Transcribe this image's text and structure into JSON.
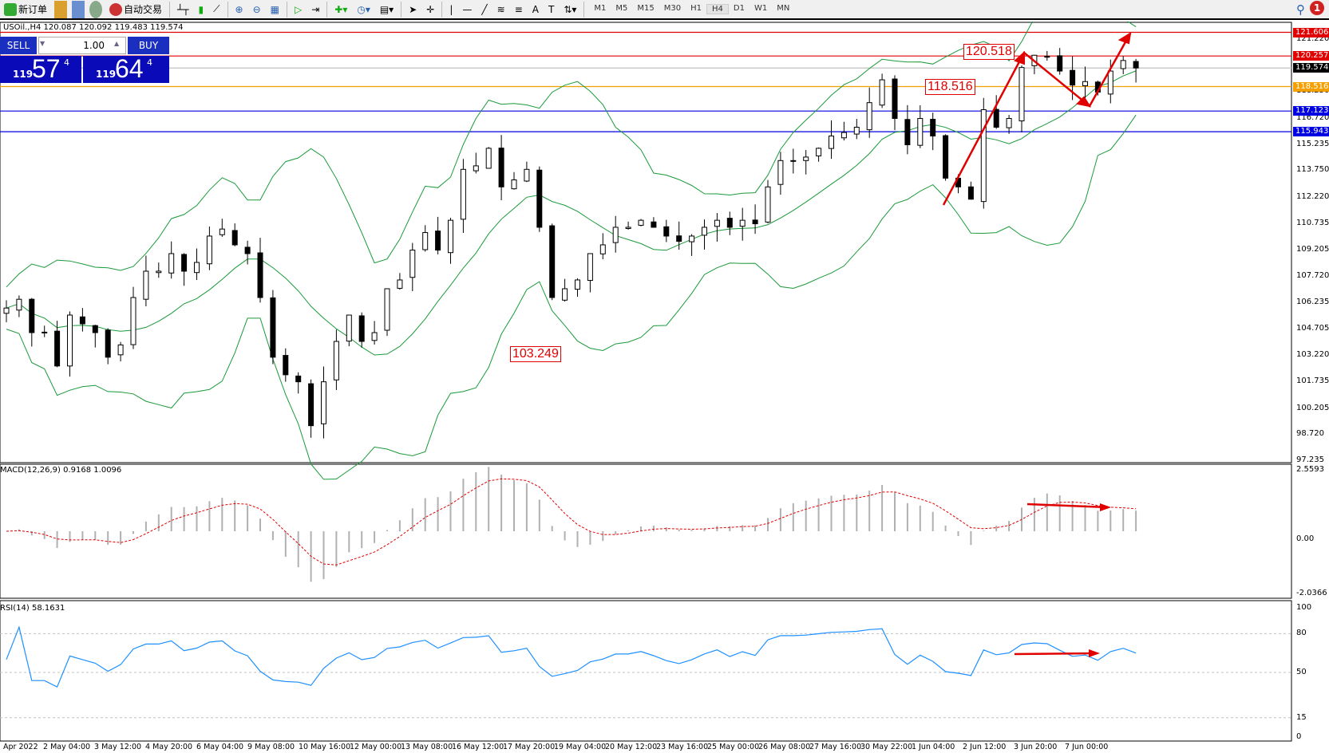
{
  "toolbar": {
    "new_order": "新订单",
    "auto_trading": "自动交易",
    "timeframes": [
      "M1",
      "M5",
      "M15",
      "M30",
      "H1",
      "H4",
      "D1",
      "W1",
      "MN"
    ],
    "active_timeframe": "H4",
    "notification_count": "1",
    "icons": [
      "history-center-icon",
      "market-watch-icon",
      "signals-icon",
      "bar-chart-icon",
      "candle-chart-icon",
      "line-chart-icon",
      "zoom-in-icon",
      "zoom-out-icon",
      "tile-windows-icon",
      "auto-scroll-icon",
      "chart-shift-icon",
      "indicators-icon",
      "periods-icon",
      "templates-icon",
      "cursor-icon",
      "crosshair-icon",
      "vertical-line-icon",
      "horizontal-line-icon",
      "trendline-icon",
      "fibonacci-icon",
      "fibo-fan-icon",
      "text-icon",
      "text-label-icon",
      "arrows-icon"
    ]
  },
  "header": {
    "symbol_line": "USOil.,H4  120.087 120.092 119.483 119.574"
  },
  "trade_panel": {
    "sell": "SELL",
    "buy": "BUY",
    "volume": "1.00",
    "sell_small": "119",
    "sell_big": "57",
    "sell_pip": "4",
    "buy_small": "119",
    "buy_big": "64",
    "buy_pip": "4"
  },
  "annotations": {
    "high1": "120.518",
    "level": "118.516",
    "low": "103.249"
  },
  "price_tags": [
    {
      "v": "121.606",
      "c": "#e00000"
    },
    {
      "v": "120.257",
      "c": "#e00000"
    },
    {
      "v": "119.574",
      "c": "#000000"
    },
    {
      "v": "118.516",
      "c": "#f5a000"
    },
    {
      "v": "117.123",
      "c": "#0000e0"
    },
    {
      "v": "115.943",
      "c": "#0000e0"
    }
  ],
  "price_axis": [
    "121.220",
    "118.250",
    "116.720",
    "115.235",
    "113.750",
    "112.220",
    "110.735",
    "109.205",
    "107.720",
    "106.235",
    "104.705",
    "103.220",
    "101.735",
    "100.205",
    "98.720",
    "97.235"
  ],
  "macd": {
    "label": "MACD(12,26,9) 0.9168 1.0096",
    "max": "2.5593",
    "zero": "0.00",
    "min": "-2.0366"
  },
  "rsi": {
    "label": "RSI(14) 58.1631",
    "levels": [
      "100",
      "80",
      "50",
      "15",
      "0"
    ]
  },
  "time_axis": [
    "Apr 2022",
    "2 May 04:00",
    "3 May 12:00",
    "4 May 20:00",
    "6 May 04:00",
    "9 May 08:00",
    "10 May 16:00",
    "12 May 00:00",
    "13 May 08:00",
    "16 May 12:00",
    "17 May 20:00",
    "19 May 04:00",
    "20 May 12:00",
    "23 May 16:00",
    "25 May 00:00",
    "26 May 08:00",
    "27 May 16:00",
    "30 May 22:00",
    "1 Jun 04:00",
    "2 Jun 12:00",
    "3 Jun 20:00",
    "7 Jun 00:00"
  ],
  "chart_data": {
    "type": "candlestick",
    "symbol": "USOil.",
    "timeframe": "H4",
    "ylim": [
      97.235,
      121.606
    ],
    "closes": [
      105.9,
      106.4,
      104.5,
      104.5,
      102.6,
      105.5,
      105.0,
      104.5,
      103.1,
      103.8,
      106.5,
      108,
      108,
      109,
      108,
      108.5,
      110,
      110.4,
      109.5,
      109,
      106.5,
      103.1,
      102.1,
      101.7,
      99.2,
      101.7,
      104,
      105.5,
      104,
      104.5,
      107,
      107.5,
      109.2,
      110.2,
      109.2,
      110.9,
      113.8,
      114,
      115,
      112.8,
      113.2,
      113.8,
      110.5,
      106.5,
      107,
      107.5,
      109,
      109.5,
      110.5,
      110.5,
      110.9,
      110.5,
      110,
      109.7,
      110,
      110.5,
      110.9,
      110.5,
      110.9,
      110.7,
      112.8,
      114.3,
      114.3,
      114.5,
      115,
      115.7,
      115.9,
      116.2,
      117.6,
      118.9,
      116.7,
      115.2,
      116.7,
      115.7,
      113.3,
      112.8,
      112.1,
      117.2,
      116.2,
      116.7,
      119.6,
      120.3,
      120.2,
      119.4,
      118.6,
      118.8,
      118.2,
      119.4,
      120.0,
      119.574
    ],
    "indicators": [
      "Bollinger Bands",
      "MACD(12,26,9)",
      "RSI(14)"
    ],
    "colors": {
      "bands": "#1a9a3a",
      "macd_signal": "#e00000",
      "rsi": "#1e90ff",
      "arrows": "#e00000"
    }
  }
}
